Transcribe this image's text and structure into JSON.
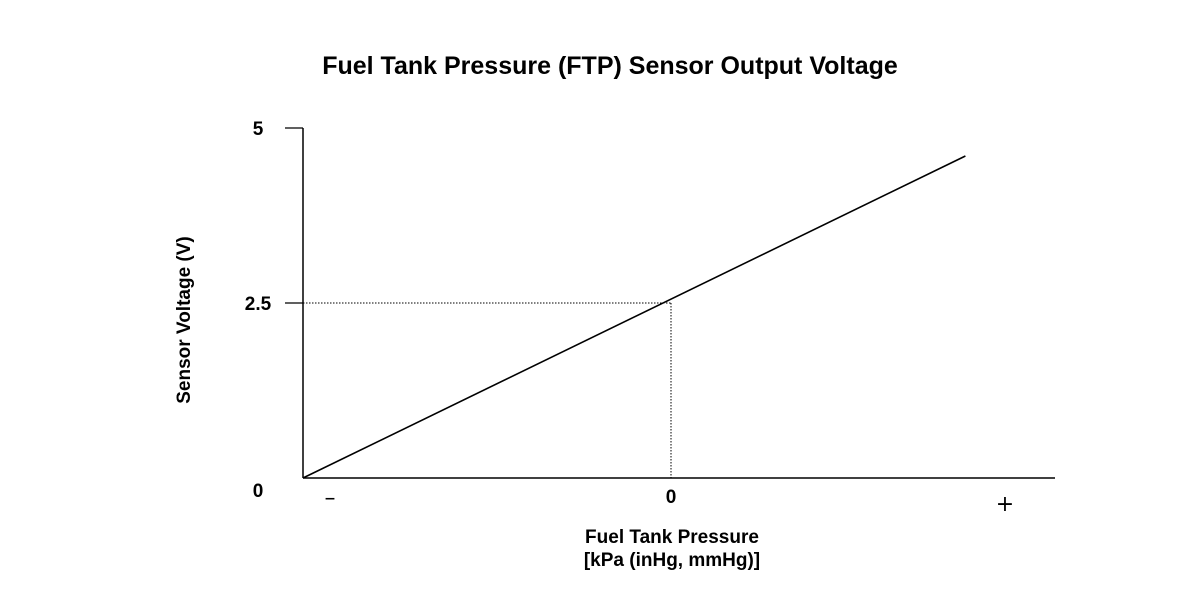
{
  "chart_data": {
    "type": "line",
    "title": "Fuel Tank Pressure (FTP) Sensor Output Voltage",
    "xlabel_lines": [
      "Fuel Tank Pressure",
      "[kPa (inHg, mmHg)]"
    ],
    "ylabel": "Sensor Voltage (V)",
    "ylim": [
      0,
      5
    ],
    "yticks": [
      "0",
      "2.5",
      "5"
    ],
    "xticks": [
      "–",
      "0",
      "+"
    ],
    "xlim": [
      -1,
      0.93
    ],
    "series": [
      {
        "x": [
          -1,
          0.8
        ],
        "y": [
          0,
          4.6
        ]
      }
    ],
    "reference_point": {
      "x": 0,
      "y": 2.5
    },
    "grid": false,
    "colors": {
      "line": "#000000",
      "axis": "#000000"
    }
  }
}
